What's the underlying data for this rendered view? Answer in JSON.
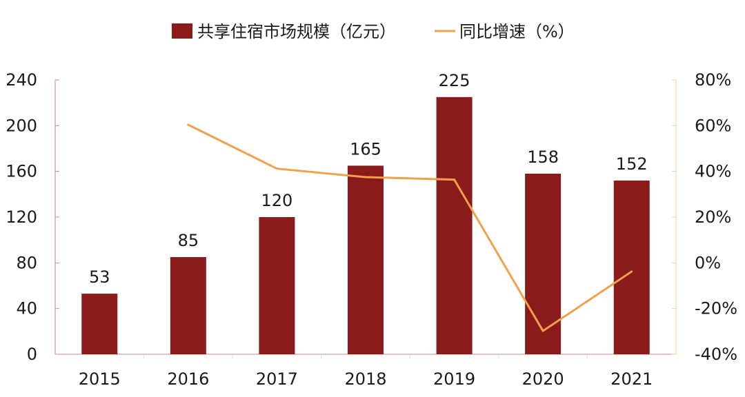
{
  "chart_data": {
    "type": "bar",
    "categories": [
      "2015",
      "2016",
      "2017",
      "2018",
      "2019",
      "2020",
      "2021"
    ],
    "series": [
      {
        "name": "共享住宿市场规模（亿元）",
        "type": "bar",
        "axis": "left",
        "color": "#8b1a1a",
        "values": [
          53,
          85,
          120,
          165,
          225,
          158,
          152
        ],
        "labels": [
          "53",
          "85",
          "120",
          "165",
          "225",
          "158",
          "152"
        ]
      },
      {
        "name": "同比增速（%）",
        "type": "line",
        "axis": "right",
        "color": "#f2a04a",
        "values": [
          null,
          60.4,
          41.2,
          37.5,
          36.4,
          -29.8,
          -3.8
        ]
      }
    ],
    "y_left": {
      "min": 0,
      "max": 240,
      "ticks": [
        "0",
        "40",
        "80",
        "120",
        "160",
        "200",
        "240"
      ]
    },
    "y_right": {
      "min": -40,
      "max": 80,
      "ticks": [
        "-40%",
        "-20%",
        "0%",
        "20%",
        "40%",
        "60%",
        "80%"
      ]
    },
    "legend_position": "top-center",
    "axis_color": "#c58b8b",
    "right_axis_color": "#f6cf9e"
  }
}
